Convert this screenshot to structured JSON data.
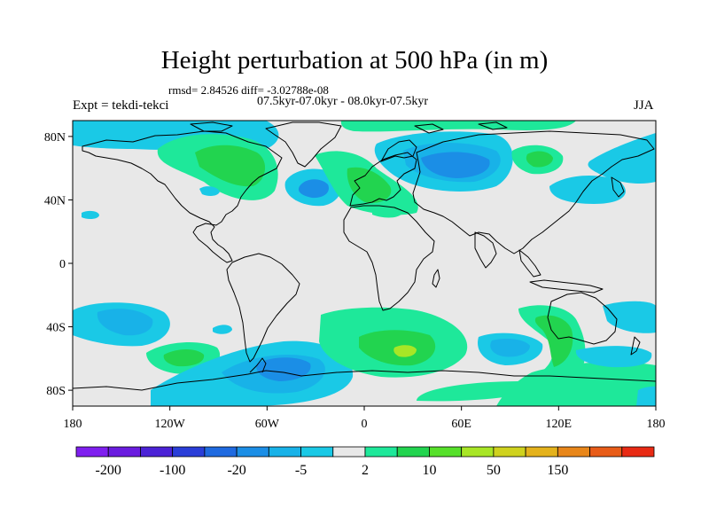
{
  "header": {
    "title": "Height perturbation at 500 hPa (in m)",
    "stats": "rmsd= 2.84526 diff= -3.02788e-08",
    "experiment": "Expt = tekdi-tekci",
    "period": "07.5kyr-07.0kyr - 08.0kyr-07.5kyr",
    "season": "JJA"
  },
  "axes": {
    "lat_ticks": [
      "80N",
      "40N",
      "0",
      "40S",
      "80S"
    ],
    "lon_ticks": [
      "180",
      "120W",
      "60W",
      "0",
      "60E",
      "120E",
      "180"
    ]
  },
  "colorbar": {
    "labels": [
      "-200",
      "-100",
      "-20",
      "-5",
      "2",
      "10",
      "50",
      "150"
    ],
    "colors": [
      "#7f1fef",
      "#6a1cdf",
      "#4b22d6",
      "#2a3ed8",
      "#1f6ae0",
      "#1b8ee6",
      "#18b2e8",
      "#1ac9e6",
      "#e8e8e8",
      "#1ee89a",
      "#22d44f",
      "#56e02a",
      "#a8e626",
      "#cfd21e",
      "#e4b21c",
      "#e8861a",
      "#e85c18",
      "#e82a14"
    ]
  },
  "map": {
    "projection": "cylindrical-equidistant",
    "lon_range": [
      -180,
      180
    ],
    "lat_range": [
      -90,
      90
    ],
    "field_colors": {
      "neutral": "#e8e8e8",
      "light_blue": "#1ac9e6",
      "mid_blue": "#18b2e8",
      "blue": "#1b8ee6",
      "light_green": "#1ee89a",
      "green": "#22d44f",
      "yellow_green": "#a8e626"
    }
  }
}
